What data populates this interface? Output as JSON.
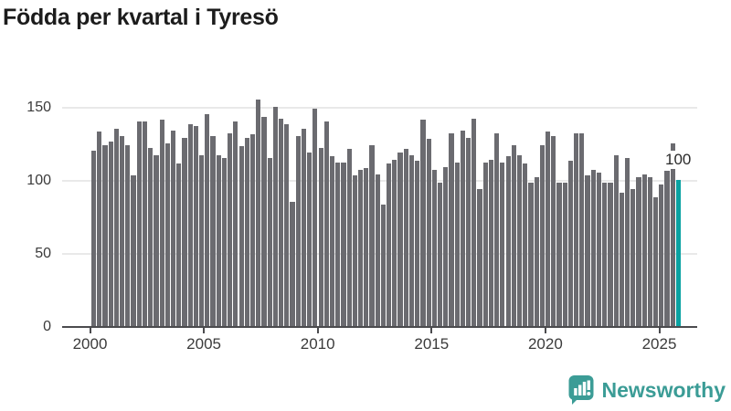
{
  "title": "Födda per kvartal i Tyresö",
  "chart_data": {
    "type": "bar",
    "title": "Födda per kvartal i Tyresö",
    "frequency": "quarterly",
    "start_period": "2000 Q1",
    "end_period": "2025 Q4",
    "x_tick_labels": [
      "2000",
      "2005",
      "2010",
      "2015",
      "2020",
      "2025"
    ],
    "y_ticks": [
      0,
      50,
      100,
      150
    ],
    "ylim": [
      0,
      160
    ],
    "grid": "horizontal",
    "legend": "none",
    "bar_color": "#6b6b70",
    "highlight_color": "#0aa2a2",
    "highlight_label": "100",
    "series": [
      {
        "name": "Födda",
        "values": [
          120,
          133,
          124,
          126,
          135,
          130,
          124,
          103,
          140,
          140,
          122,
          117,
          141,
          125,
          134,
          111,
          129,
          138,
          137,
          117,
          145,
          130,
          117,
          115,
          132,
          140,
          123,
          129,
          131,
          155,
          143,
          115,
          150,
          142,
          138,
          85,
          130,
          135,
          119,
          149,
          122,
          140,
          116,
          112,
          112,
          121,
          103,
          107,
          108,
          124,
          104,
          83,
          111,
          114,
          119,
          121,
          117,
          113,
          141,
          128,
          107,
          98,
          109,
          132,
          112,
          134,
          129,
          142,
          94,
          112,
          114,
          132,
          112,
          116,
          124,
          117,
          111,
          98,
          102,
          124,
          133,
          130,
          98,
          98,
          113,
          132,
          132,
          103,
          107,
          105,
          98,
          98,
          117,
          91,
          115,
          94,
          102,
          104,
          102,
          88,
          97,
          106,
          125,
          100
        ]
      }
    ]
  },
  "logo": {
    "text": "Newsworthy"
  }
}
